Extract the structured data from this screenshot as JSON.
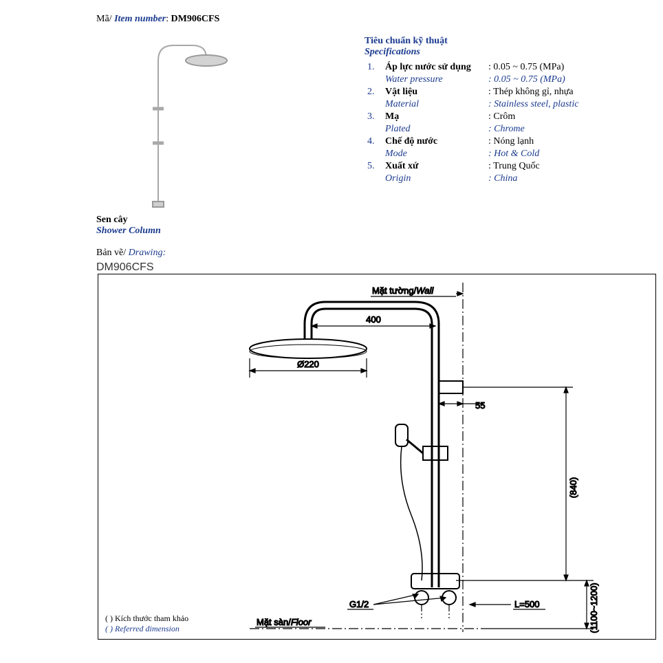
{
  "header": {
    "ma_label_vn": "Mã/",
    "ma_label_en": " Item number",
    "item_number": "DM906CFS"
  },
  "product_name": {
    "vn": "Sen cây",
    "en": "Shower Column"
  },
  "specs": {
    "title_vn": "Tiêu chuẩn kỹ thuật",
    "title_en": "Specifications",
    "items": [
      {
        "num": "1.",
        "label_vn": "Áp lực nước sử dụng",
        "label_en": "Water pressure",
        "val_vn": ": 0.05 ~ 0.75  (MPa)",
        "val_en": ": 0.05 ~ 0.75 (MPa)"
      },
      {
        "num": "2.",
        "label_vn": "Vật liệu",
        "label_en": "Material",
        "val_vn": ": Thép không gỉ, nhựa",
        "val_en": ": Stainless steel, plastic"
      },
      {
        "num": "3.",
        "label_vn": "Mạ",
        "label_en": "Plated",
        "val_vn": ": Crôm",
        "val_en": ": Chrome"
      },
      {
        "num": "4.",
        "label_vn": "Chế độ nước",
        "label_en": "Mode",
        "val_vn": ": Nóng lạnh",
        "val_en": ": Hot & Cold"
      },
      {
        "num": "5.",
        "label_vn": "Xuất xứ",
        "label_en": "Origin",
        "val_vn": ": Trung Quốc",
        "val_en": ": China"
      }
    ]
  },
  "drawing": {
    "label_vn": "Bản vẽ/",
    "label_en": " Drawing:",
    "id": "DM906CFS",
    "wall_label_vn": "Mặt tường/",
    "wall_label_en": "Wall",
    "floor_label_vn": "Mặt sàn/",
    "floor_label_en": "Floor",
    "dim_arm": "400",
    "dim_head": "Ø220",
    "dim_wall_offset": "55",
    "dim_height": "(840)",
    "dim_floor_range": "(1100~1200)",
    "dim_hose": "L=500",
    "thread": "G1/2",
    "notes_vn": "(      )  Kích thước tham khảo",
    "notes_en": "(      )  Referred dimension"
  },
  "style": {
    "blue": "#1a3a8f",
    "black": "#000000",
    "illustration_strokes": "#a8a8a8",
    "drawing_strokes": "#000000"
  }
}
